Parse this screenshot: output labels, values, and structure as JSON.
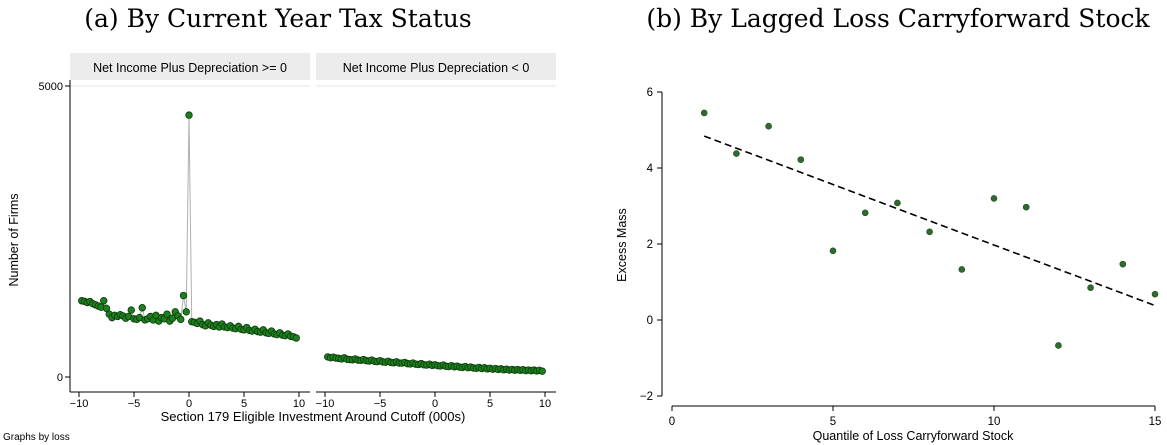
{
  "chart_data": [
    {
      "type": "scatter",
      "title": "(a) By Current Year Tax Status",
      "ylabel": "Number of Firms",
      "xlabel": "Section 179 Eligible Investment Around Cutoff (000s)",
      "note": "Graphs by loss",
      "ylim": [
        0,
        5000
      ],
      "yticks": [
        0,
        5000
      ],
      "xlim": [
        -10,
        10
      ],
      "xticks": [
        -10,
        -5,
        0,
        5,
        10
      ],
      "connected": true,
      "colors": {
        "marker": "#1f7f1f",
        "marker_edge": "#0a3a0a",
        "line": "#b0b0b0",
        "panel_header": "#ececec"
      },
      "panels": [
        {
          "name": "Net Income Plus Depreciation >= 0",
          "x": [
            -9.75,
            -9.5,
            -9.25,
            -9,
            -8.75,
            -8.5,
            -8.25,
            -8,
            -7.75,
            -7.5,
            -7.25,
            -7,
            -6.75,
            -6.5,
            -6.25,
            -6,
            -5.75,
            -5.5,
            -5.25,
            -5,
            -4.75,
            -4.5,
            -4.25,
            -4,
            -3.75,
            -3.5,
            -3.25,
            -3,
            -2.75,
            -2.5,
            -2.25,
            -2,
            -1.75,
            -1.5,
            -1.25,
            -1,
            -0.75,
            -0.5,
            -0.25,
            0,
            0.25,
            0.5,
            0.75,
            1,
            1.25,
            1.5,
            1.75,
            2,
            2.25,
            2.5,
            2.75,
            3,
            3.25,
            3.5,
            3.75,
            4,
            4.25,
            4.5,
            4.75,
            5,
            5.25,
            5.5,
            5.75,
            6,
            6.25,
            6.5,
            6.75,
            7,
            7.25,
            7.5,
            7.75,
            8,
            8.25,
            8.5,
            8.75,
            9,
            9.25,
            9.5,
            9.75
          ],
          "y": [
            1310,
            1300,
            1280,
            1295,
            1260,
            1240,
            1220,
            1200,
            1310,
            1180,
            1080,
            1020,
            1060,
            1040,
            1070,
            1050,
            1010,
            1040,
            1150,
            1000,
            990,
            1020,
            1190,
            980,
            1000,
            1040,
            980,
            1060,
            960,
            1020,
            1000,
            1080,
            960,
            1010,
            1120,
            1050,
            990,
            1400,
            1120,
            4500,
            950,
            940,
            920,
            960,
            900,
            880,
            930,
            890,
            870,
            900,
            860,
            910,
            860,
            850,
            880,
            840,
            830,
            870,
            820,
            810,
            850,
            800,
            790,
            820,
            780,
            770,
            810,
            760,
            750,
            790,
            740,
            730,
            760,
            720,
            710,
            740,
            700,
            690,
            670
          ]
        },
        {
          "name": "Net Income Plus Depreciation < 0",
          "x": [
            -9.75,
            -9.5,
            -9.25,
            -9,
            -8.75,
            -8.5,
            -8.25,
            -8,
            -7.75,
            -7.5,
            -7.25,
            -7,
            -6.75,
            -6.5,
            -6.25,
            -6,
            -5.75,
            -5.5,
            -5.25,
            -5,
            -4.75,
            -4.5,
            -4.25,
            -4,
            -3.75,
            -3.5,
            -3.25,
            -3,
            -2.75,
            -2.5,
            -2.25,
            -2,
            -1.75,
            -1.5,
            -1.25,
            -1,
            -0.75,
            -0.5,
            -0.25,
            0,
            0.25,
            0.5,
            0.75,
            1,
            1.25,
            1.5,
            1.75,
            2,
            2.25,
            2.5,
            2.75,
            3,
            3.25,
            3.5,
            3.75,
            4,
            4.25,
            4.5,
            4.75,
            5,
            5.25,
            5.5,
            5.75,
            6,
            6.25,
            6.5,
            6.75,
            7,
            7.25,
            7.5,
            7.75,
            8,
            8.25,
            8.5,
            8.75,
            9,
            9.25,
            9.5,
            9.75
          ],
          "y": [
            345,
            330,
            340,
            325,
            320,
            310,
            330,
            305,
            300,
            295,
            310,
            290,
            285,
            300,
            280,
            275,
            290,
            270,
            265,
            280,
            260,
            255,
            270,
            250,
            245,
            260,
            240,
            240,
            250,
            230,
            225,
            240,
            220,
            215,
            230,
            210,
            205,
            220,
            200,
            210,
            195,
            190,
            205,
            185,
            180,
            195,
            175,
            185,
            170,
            165,
            180,
            160,
            170,
            155,
            150,
            165,
            145,
            160,
            140,
            150,
            135,
            145,
            130,
            140,
            125,
            135,
            120,
            130,
            118,
            128,
            115,
            125,
            110,
            120,
            108,
            118,
            105,
            115,
            100
          ]
        }
      ]
    },
    {
      "type": "scatter",
      "title": "(b) By Lagged Loss Carryforward Stock",
      "xlabel": "Quantile of Loss Carryforward Stock",
      "ylabel": "Excess Mass",
      "xlim": [
        0,
        15
      ],
      "ylim": [
        -2,
        6
      ],
      "xticks": [
        0,
        5,
        10,
        15
      ],
      "yticks": [
        -2,
        0,
        2,
        4,
        6
      ],
      "x": [
        1,
        2,
        3,
        4,
        5,
        6,
        7,
        8,
        9,
        10,
        11,
        12,
        13,
        14,
        15
      ],
      "y": [
        5.45,
        4.38,
        5.1,
        4.22,
        1.82,
        2.82,
        3.08,
        2.32,
        1.33,
        3.2,
        2.97,
        -0.67,
        0.85,
        1.47,
        0.68
      ],
      "fit_line": {
        "style": "dashed",
        "x": [
          1,
          15
        ],
        "y": [
          4.84,
          0.38
        ]
      },
      "colors": {
        "marker": "#2f6b2f",
        "line": "#000000"
      }
    }
  ]
}
